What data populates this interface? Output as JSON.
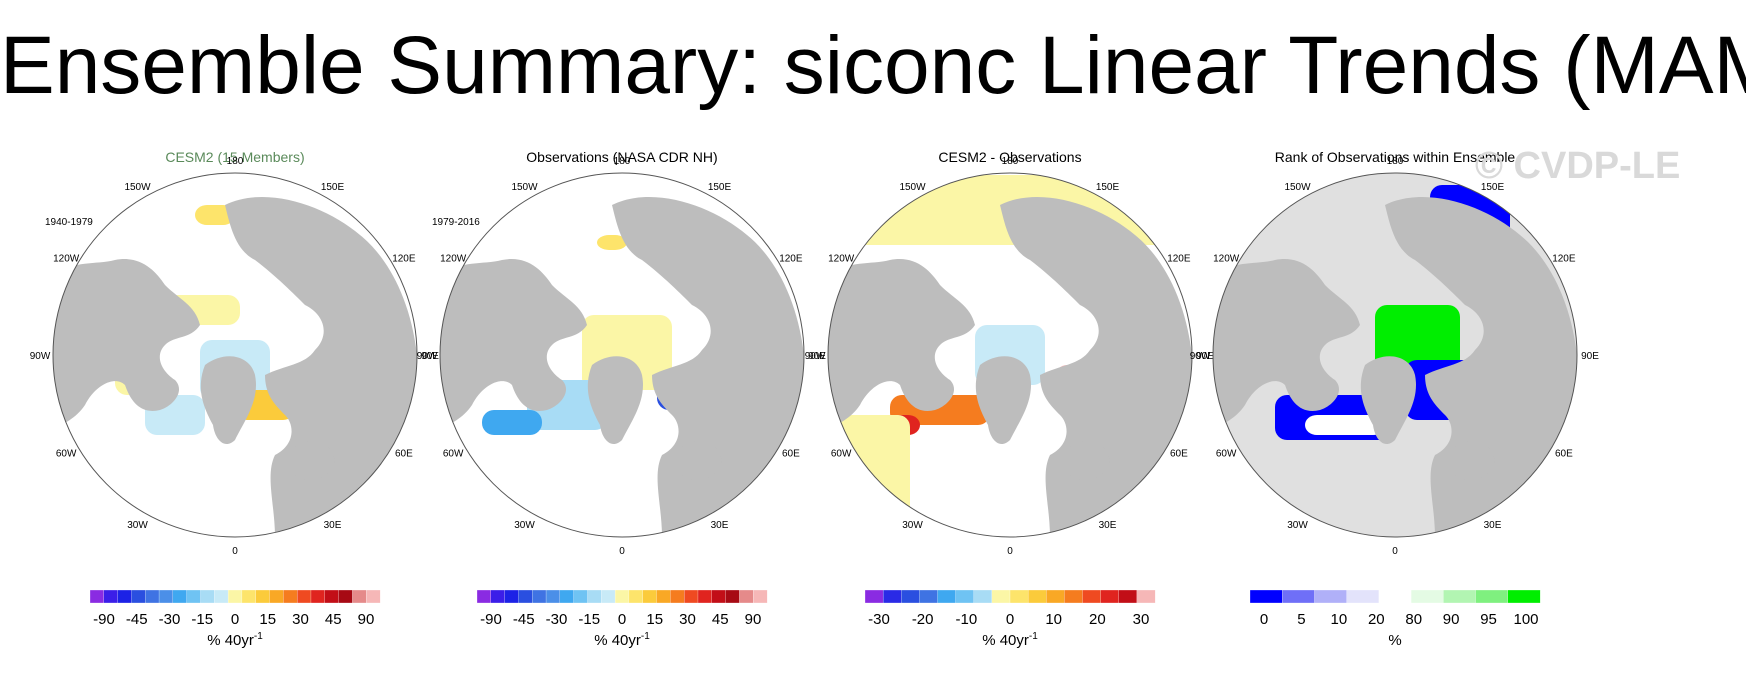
{
  "title": "Ensemble Summary: siconc Linear Trends (MAM)",
  "watermark": "© CVDP-LE",
  "colors": {
    "land": "#bdbdbd",
    "ocean_bg": "#ffffff",
    "ocean_grey": "#e0e0e0",
    "first_title": "#5a8a5a"
  },
  "longitude_labels": [
    "180",
    "150E",
    "120E",
    "90E",
    "60E",
    "30E",
    "0",
    "30W",
    "60W",
    "90W",
    "120W",
    "150W"
  ],
  "panels": [
    {
      "title": "CESM2 (15 Members)",
      "period": "1940-1979",
      "colorbar": {
        "colors": [
          "#8a2be2",
          "#3b1ee8",
          "#1c22e6",
          "#2a4fe0",
          "#3f73e3",
          "#4b8fe8",
          "#3fa8f0",
          "#6fc3f3",
          "#a8dcf5",
          "#c8eaf7",
          "#fbf6a6",
          "#fde46b",
          "#fbcb3b",
          "#f9a825",
          "#f57c1f",
          "#ef4a21",
          "#e0241f",
          "#c20e17",
          "#a70a14",
          "#e58a8a",
          "#f6b7b7"
        ],
        "labels": [
          "-90",
          "-45",
          "-30",
          "-15",
          "0",
          "15",
          "30",
          "45",
          "90"
        ],
        "unit": "% 40yr",
        "unit_sup": "-1"
      }
    },
    {
      "title": "Observations (NASA CDR NH)",
      "period": "1979-2016",
      "colorbar": {
        "colors": [
          "#8a2be2",
          "#3b1ee8",
          "#1c22e6",
          "#2a4fe0",
          "#3f73e3",
          "#4b8fe8",
          "#3fa8f0",
          "#6fc3f3",
          "#a8dcf5",
          "#c8eaf7",
          "#fbf6a6",
          "#fde46b",
          "#fbcb3b",
          "#f9a825",
          "#f57c1f",
          "#ef4a21",
          "#e0241f",
          "#c20e17",
          "#a70a14",
          "#e58a8a",
          "#f6b7b7"
        ],
        "labels": [
          "-90",
          "-45",
          "-30",
          "-15",
          "0",
          "15",
          "30",
          "45",
          "90"
        ],
        "unit": "% 40yr",
        "unit_sup": "-1"
      }
    },
    {
      "title": "CESM2 - Observations",
      "period": "",
      "colorbar": {
        "colors": [
          "#8a2be2",
          "#2a2ae6",
          "#2a4fe0",
          "#3f73e3",
          "#3fa8f0",
          "#6fc3f3",
          "#a8dcf5",
          "#fbf6a6",
          "#fde46b",
          "#fbcb3b",
          "#f9a825",
          "#f57c1f",
          "#ef4a21",
          "#e0241f",
          "#c20e17",
          "#f6b7b7"
        ],
        "labels": [
          "-30",
          "-20",
          "-10",
          "0",
          "10",
          "20",
          "30"
        ],
        "unit": "% 40yr",
        "unit_sup": "-1"
      }
    },
    {
      "title": "Rank of Observations within Ensemble",
      "period": "",
      "colorbar": {
        "colors": [
          "#0000ff",
          "#6f6ff7",
          "#b0b0f8",
          "#e3e3fb",
          "#ffffff",
          "#e4fbe4",
          "#b2f5b2",
          "#7ff07f",
          "#00ee00"
        ],
        "labels": [
          "0",
          "5",
          "10",
          "20",
          "80",
          "90",
          "95",
          "100"
        ],
        "unit": "%",
        "unit_sup": ""
      }
    }
  ]
}
